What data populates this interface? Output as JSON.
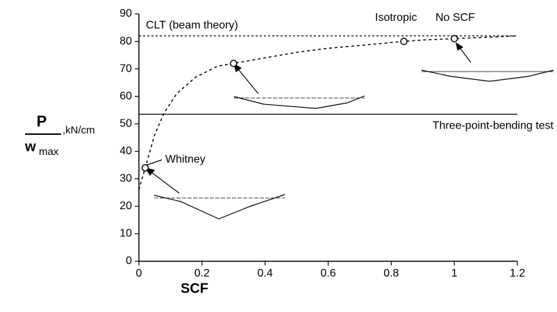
{
  "chart_data": {
    "type": "line",
    "xlabel": "SCF",
    "ylabel": {
      "numerator": "P",
      "denominator": "w",
      "subscript": "max",
      "unit": ",kN/cm"
    },
    "xlim": [
      0,
      1.2
    ],
    "xticks": [
      0,
      0.2,
      0.4,
      0.6,
      0.8,
      1,
      1.2
    ],
    "ylim": [
      0,
      90
    ],
    "yticks": [
      0,
      10,
      20,
      30,
      40,
      50,
      60,
      70,
      80,
      90
    ],
    "color": "#000000",
    "series": [
      {
        "style": "dashed",
        "x": [
          0,
          0.02,
          0.05,
          0.08,
          0.12,
          0.18,
          0.25,
          0.3,
          0.4,
          0.5,
          0.6,
          0.7,
          0.84,
          0.9,
          1.0,
          1.1,
          1.2
        ],
        "values": [
          26,
          34,
          46,
          54,
          61,
          67,
          71,
          72,
          74,
          76,
          77.5,
          78.5,
          80,
          80.5,
          81,
          81.5,
          82
        ]
      },
      {
        "style": "markers",
        "x": [
          0.02,
          0.3,
          0.84,
          1.0
        ],
        "values": [
          34,
          72,
          80,
          81
        ]
      }
    ],
    "hlines": [
      {
        "value": 82,
        "label": "CLT (beam theory)",
        "style": "dotted"
      },
      {
        "value": 53.5,
        "label": "Three-point-bending test",
        "style": "solid"
      }
    ],
    "annotations": [
      "Whitney",
      "Isotropic",
      "No SCF"
    ]
  }
}
